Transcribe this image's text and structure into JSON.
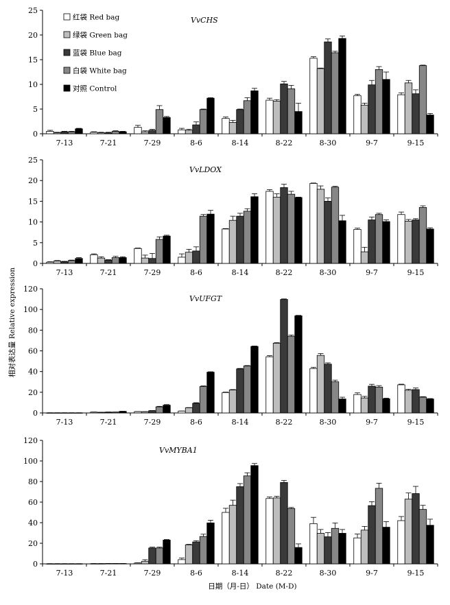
{
  "legend": [
    {
      "label": "红袋 Red bag",
      "color": "#ffffff"
    },
    {
      "label": "绿袋 Green bag",
      "color": "#bdbdbd"
    },
    {
      "label": "蓝袋 Blue bag",
      "color": "#3a3a3a"
    },
    {
      "label": "白袋 White bag",
      "color": "#878787"
    },
    {
      "label": "对照 Control",
      "color": "#000000"
    }
  ],
  "xlabel": "日期（月-日） Date (M-D)",
  "ylabel": "相对表达量 Relative expression",
  "chart_data": [
    {
      "type": "bar",
      "gene": "VvCHS",
      "categories": [
        "7-13",
        "7-21",
        "7-29",
        "8-6",
        "8-14",
        "8-22",
        "8-30",
        "9-7",
        "9-15"
      ],
      "ylim": [
        0,
        25
      ],
      "yticks": [
        0,
        5,
        10,
        15,
        20,
        25
      ],
      "series": [
        {
          "name": "红袋 Red bag",
          "values": [
            0.5,
            0.3,
            1.3,
            0.8,
            3.1,
            6.8,
            15.3,
            7.7,
            7.9
          ],
          "errors": [
            0.2,
            0.1,
            0.4,
            0.3,
            0.3,
            0.4,
            0.3,
            0.3,
            0.4
          ]
        },
        {
          "name": "绿袋 Green bag",
          "values": [
            0.2,
            0.2,
            0.4,
            0.7,
            2.3,
            6.6,
            13.2,
            5.8,
            10.3
          ],
          "errors": [
            0.1,
            0.1,
            0.2,
            0.2,
            0.4,
            0.3,
            0.1,
            0.4,
            0.5
          ]
        },
        {
          "name": "蓝袋 Blue bag",
          "values": [
            0.4,
            0.2,
            0.7,
            1.8,
            4.9,
            10.1,
            18.6,
            9.9,
            8.1
          ],
          "errors": [
            0.1,
            0.1,
            0.2,
            0.6,
            0.1,
            0.5,
            0.6,
            0.9,
            0.8
          ]
        },
        {
          "name": "白袋 White bag",
          "values": [
            0.4,
            0.5,
            4.9,
            4.9,
            6.7,
            9.1,
            16.4,
            13.0,
            13.8
          ],
          "errors": [
            0.1,
            0.1,
            0.8,
            0.1,
            0.6,
            0.7,
            0.3,
            0.6,
            0.1
          ]
        },
        {
          "name": "对照 Control",
          "values": [
            1.0,
            0.4,
            3.3,
            7.2,
            8.7,
            4.5,
            19.3,
            11.0,
            3.8
          ],
          "errors": [
            0.1,
            0.1,
            0.2,
            0.1,
            0.5,
            1.7,
            0.5,
            1.5,
            0.3
          ]
        }
      ]
    },
    {
      "type": "bar",
      "gene": "VvLDOX",
      "categories": [
        "7-13",
        "7-21",
        "7-29",
        "8-6",
        "8-14",
        "8-22",
        "8-30",
        "9-7",
        "9-15"
      ],
      "ylim": [
        0,
        25
      ],
      "yticks": [
        0,
        5,
        10,
        15,
        20,
        25
      ],
      "series": [
        {
          "name": "红袋 Red bag",
          "values": [
            0.3,
            2.1,
            3.6,
            1.5,
            8.3,
            17.4,
            19.3,
            8.2,
            11.8
          ],
          "errors": [
            0.1,
            0.2,
            0.1,
            0.8,
            0.1,
            0.4,
            0.1,
            0.3,
            0.6
          ]
        },
        {
          "name": "绿袋 Green bag",
          "values": [
            0.6,
            1.3,
            1.3,
            2.7,
            10.4,
            16.0,
            17.9,
            2.8,
            10.2
          ],
          "errors": [
            0.1,
            0.3,
            0.7,
            0.7,
            1.0,
            0.8,
            0.8,
            1.1,
            0.4
          ]
        },
        {
          "name": "蓝袋 Blue bag",
          "values": [
            0.4,
            0.8,
            1.2,
            3.0,
            11.4,
            18.3,
            15.0,
            10.5,
            10.5
          ],
          "errors": [
            0.1,
            0.1,
            1.2,
            1.0,
            0.7,
            0.8,
            0.8,
            0.7,
            0.3
          ]
        },
        {
          "name": "白袋 White bag",
          "values": [
            0.7,
            1.4,
            5.8,
            11.4,
            12.6,
            16.7,
            18.4,
            11.8,
            13.5
          ],
          "errors": [
            0.1,
            0.3,
            0.6,
            0.4,
            0.6,
            0.7,
            0.2,
            0.3,
            0.4
          ]
        },
        {
          "name": "对照 Control",
          "values": [
            1.2,
            1.4,
            6.6,
            11.9,
            16.1,
            15.9,
            10.3,
            10.1,
            8.3
          ],
          "errors": [
            0.2,
            0.2,
            0.2,
            0.9,
            0.7,
            0.1,
            1.3,
            0.4,
            0.3
          ]
        }
      ]
    },
    {
      "type": "bar",
      "gene": "VvUFGT",
      "categories": [
        "7-13",
        "7-21",
        "7-29",
        "8-6",
        "8-14",
        "8-22",
        "8-30",
        "9-7",
        "9-15"
      ],
      "ylim": [
        0,
        120
      ],
      "yticks": [
        0,
        20,
        40,
        60,
        80,
        100,
        120
      ],
      "series": [
        {
          "name": "红袋 Red bag",
          "values": [
            0.1,
            0.8,
            1.3,
            1.8,
            19.7,
            54.3,
            42.9,
            17.8,
            27.2
          ],
          "errors": [
            0.1,
            0.1,
            0.1,
            0.1,
            0.4,
            1.0,
            1.2,
            1.6,
            0.6
          ]
        },
        {
          "name": "绿袋 Green bag",
          "values": [
            0.1,
            0.6,
            1.2,
            5.0,
            22.2,
            67.4,
            55.6,
            14.5,
            21.9
          ],
          "errors": [
            0.1,
            0.1,
            0.1,
            0.2,
            0.4,
            0.5,
            1.8,
            1.5,
            1.0
          ]
        },
        {
          "name": "蓝袋 Blue bag",
          "values": [
            0.1,
            0.8,
            2.2,
            9.3,
            42.6,
            109.7,
            47.2,
            25.9,
            22.6
          ],
          "errors": [
            0.1,
            0.1,
            0.1,
            0.6,
            0.4,
            0.5,
            1.2,
            1.8,
            1.5
          ]
        },
        {
          "name": "白袋 White bag",
          "values": [
            0.1,
            0.8,
            5.9,
            25.5,
            45.4,
            74.1,
            30.1,
            25.0,
            15.3
          ],
          "errors": [
            0.1,
            0.1,
            0.5,
            0.6,
            0.4,
            1.2,
            1.6,
            1.4,
            0.4
          ]
        },
        {
          "name": "对照 Control",
          "values": [
            0.1,
            1.5,
            7.5,
            39.4,
            64.3,
            93.9,
            13.5,
            13.7,
            13.5
          ],
          "errors": [
            0.1,
            0.1,
            0.6,
            0.4,
            0.4,
            0.4,
            1.7,
            0.6,
            0.4
          ]
        }
      ]
    },
    {
      "type": "bar",
      "gene": "VvMYBA1",
      "categories": [
        "7-13",
        "7-21",
        "7-29",
        "8-6",
        "8-14",
        "8-22",
        "8-30",
        "9-7",
        "9-15"
      ],
      "ylim": [
        0,
        120
      ],
      "yticks": [
        0,
        20,
        40,
        60,
        80,
        100,
        120
      ],
      "series": [
        {
          "name": "红袋 Red bag",
          "values": [
            0.1,
            0.2,
            0.8,
            4.1,
            50.0,
            63.5,
            39.1,
            25.2,
            42.0
          ],
          "errors": [
            0.1,
            0.1,
            0.2,
            1.5,
            4.0,
            1.5,
            6.1,
            3.8,
            4.0
          ]
        },
        {
          "name": "绿袋 Green bag",
          "values": [
            0.1,
            0.2,
            2.5,
            18.5,
            56.9,
            64.1,
            29.7,
            32.8,
            62.9
          ],
          "errors": [
            0.1,
            0.1,
            1.5,
            0.5,
            5.0,
            1.5,
            3.7,
            3.6,
            6.0
          ]
        },
        {
          "name": "蓝袋 Blue bag",
          "values": [
            0.1,
            0.3,
            15.4,
            21.3,
            75.0,
            79.1,
            26.3,
            56.6,
            68.3
          ],
          "errors": [
            0.1,
            0.1,
            0.8,
            1.2,
            3.0,
            2.0,
            4.1,
            3.8,
            7.0
          ]
        },
        {
          "name": "白袋 White bag",
          "values": [
            0.1,
            0.3,
            15.4,
            26.6,
            85.5,
            53.8,
            34.5,
            73.4,
            52.9
          ],
          "errors": [
            0.1,
            0.1,
            0.8,
            2.2,
            3.0,
            1.0,
            5.2,
            5.0,
            4.0
          ]
        },
        {
          "name": "对照 Control",
          "values": [
            0.1,
            0.3,
            23.1,
            39.8,
            95.5,
            15.9,
            29.7,
            35.6,
            37.5
          ],
          "errors": [
            0.1,
            0.1,
            0.5,
            2.6,
            2.0,
            3.5,
            3.7,
            5.4,
            5.9
          ]
        }
      ]
    }
  ]
}
